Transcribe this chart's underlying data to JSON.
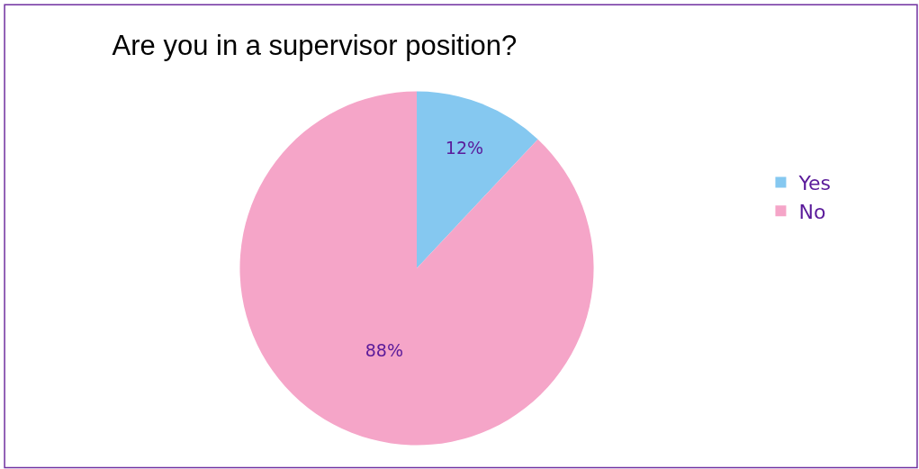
{
  "chart_data": {
    "type": "pie",
    "title": "Are you in a supervisor position?",
    "categories": [
      "Yes",
      "No"
    ],
    "values": [
      12,
      88
    ],
    "colors": [
      "#85c8f0",
      "#f5a5c8"
    ],
    "value_labels": [
      "12%",
      "88%"
    ],
    "legend": "right"
  }
}
